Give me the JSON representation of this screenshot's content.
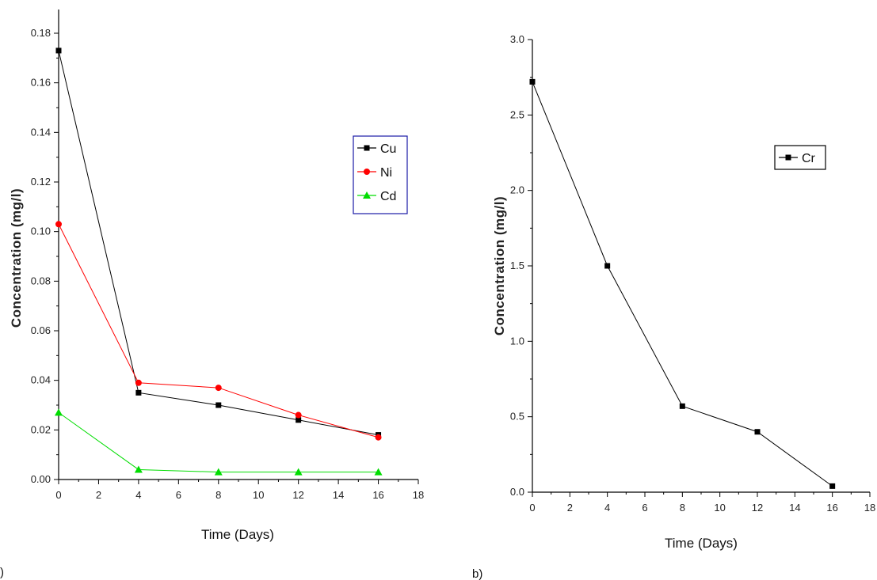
{
  "colors": {
    "Cu": "#000000",
    "Ni": "#ff0000",
    "Cd": "#00dd00",
    "Cr": "#000000",
    "legend_border_a": "#1a1aa6",
    "legend_border_b": "#000000"
  },
  "panels": {
    "a_label": ")",
    "b_label": "b)"
  },
  "chart_data": [
    {
      "type": "line",
      "xlabel": "Time (Days)",
      "ylabel": "Concentration (mg/l)",
      "x": [
        0,
        4,
        8,
        12,
        16
      ],
      "xlim": [
        0,
        18
      ],
      "ylim": [
        0,
        0.19
      ],
      "xticks": [
        "0",
        "2",
        "4",
        "6",
        "8",
        "10",
        "12",
        "14",
        "16",
        "18"
      ],
      "yticks": [
        "0.00",
        "0.02",
        "0.04",
        "0.06",
        "0.08",
        "0.10",
        "0.12",
        "0.14",
        "0.16",
        "0.18"
      ],
      "legend_position": "right",
      "series": [
        {
          "name": "Cu",
          "marker": "square",
          "values": [
            0.173,
            0.035,
            0.03,
            0.024,
            0.018
          ]
        },
        {
          "name": "Ni",
          "marker": "circle",
          "values": [
            0.103,
            0.039,
            0.037,
            0.026,
            0.017
          ]
        },
        {
          "name": "Cd",
          "marker": "triangle",
          "values": [
            0.027,
            0.004,
            0.003,
            0.003,
            0.003
          ]
        }
      ]
    },
    {
      "type": "line",
      "xlabel": "Time (Days)",
      "ylabel": "Concentration (mg/l)",
      "x": [
        0,
        4,
        8,
        12,
        16
      ],
      "xlim": [
        0,
        18
      ],
      "ylim": [
        0,
        3.0
      ],
      "xticks": [
        "0",
        "2",
        "4",
        "6",
        "8",
        "10",
        "12",
        "14",
        "16",
        "18"
      ],
      "yticks": [
        "0.0",
        "0.5",
        "1.0",
        "1.5",
        "2.0",
        "2.5",
        "3.0"
      ],
      "legend_position": "top-right",
      "series": [
        {
          "name": "Cr",
          "marker": "square",
          "values": [
            2.72,
            1.5,
            0.57,
            0.4,
            0.04
          ]
        }
      ]
    }
  ]
}
